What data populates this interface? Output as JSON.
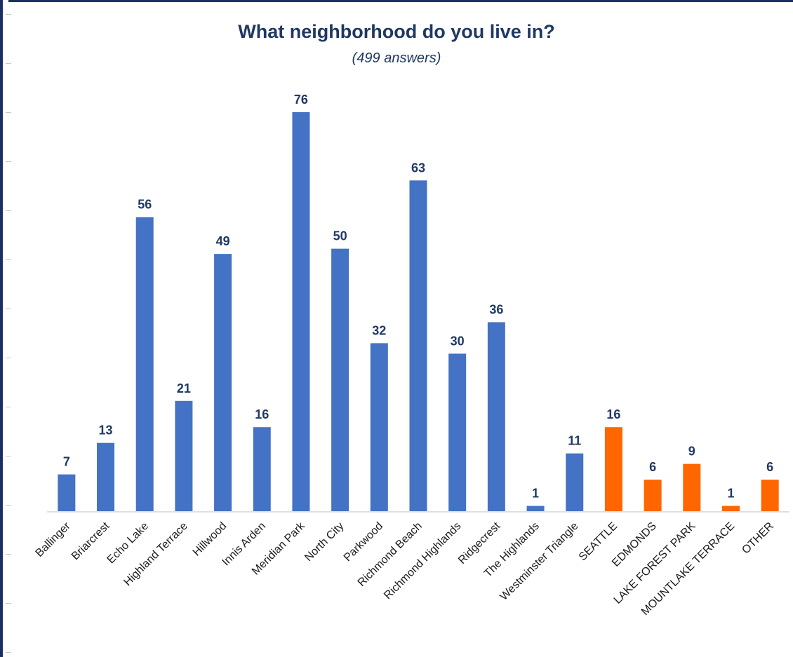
{
  "chart_data": {
    "type": "bar",
    "title": "What neighborhood do you live in?",
    "subtitle": "(499 answers)",
    "categories": [
      "Ballinger",
      "Briarcrest",
      "Echo Lake",
      "Highland Terrace",
      "Hillwood",
      "Innis Arden",
      "Meridian Park",
      "North City",
      "Parkwood",
      "Richmond Beach",
      "Richmond Highlands",
      "Ridgecrest",
      "The Highlands",
      "Westminster Triangle",
      "SEATTLE",
      "EDMONDS",
      "LAKE FOREST PARK",
      "MOUNTLAKE TERRACE",
      "OTHER"
    ],
    "values": [
      7,
      13,
      56,
      21,
      49,
      16,
      76,
      50,
      32,
      63,
      30,
      36,
      1,
      11,
      16,
      6,
      9,
      1,
      6
    ],
    "groups": [
      "shoreline",
      "shoreline",
      "shoreline",
      "shoreline",
      "shoreline",
      "shoreline",
      "shoreline",
      "shoreline",
      "shoreline",
      "shoreline",
      "shoreline",
      "shoreline",
      "shoreline",
      "shoreline",
      "outside",
      "outside",
      "outside",
      "outside",
      "outside"
    ],
    "colors": {
      "shoreline": "#4472c4",
      "outside": "#ff6600"
    },
    "ylim": [
      0,
      76
    ],
    "xlabel": "",
    "ylabel": "",
    "grid": false,
    "legend": "none",
    "data_labels": true
  }
}
